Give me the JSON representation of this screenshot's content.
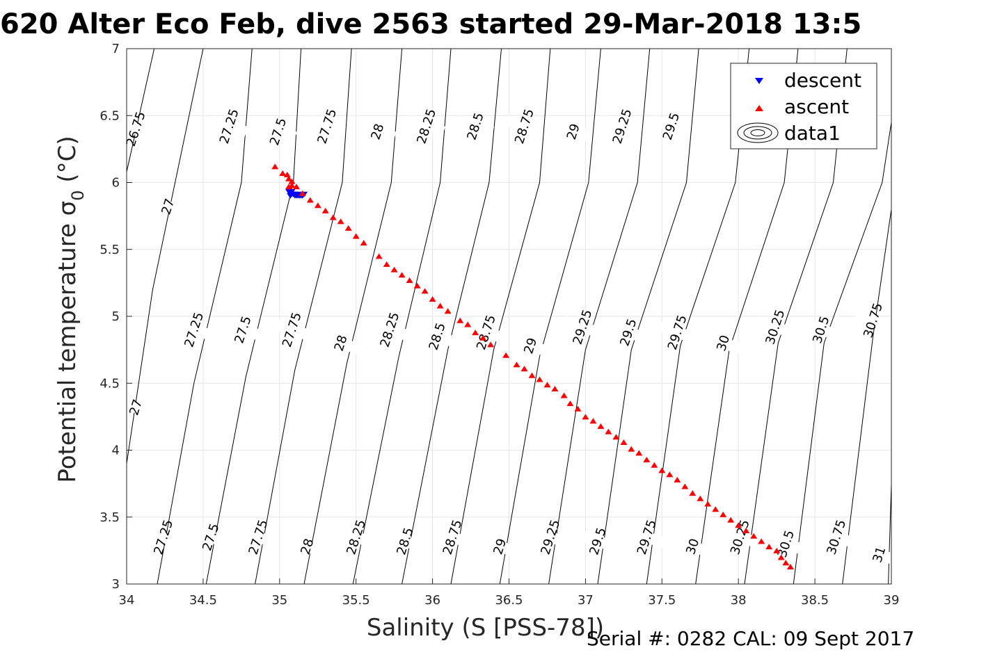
{
  "chart_data": {
    "type": "scatter",
    "title": "620 Alter Eco Feb, dive 2563 started 29-Mar-2018 13:5",
    "xlabel": "Salinity (S [PSS-78])",
    "ylabel": "Potential temperature σ",
    "ylabel_subscript": "0",
    "ylabel_suffix": " (°C)",
    "xlim": [
      34,
      39
    ],
    "ylim": [
      3,
      7
    ],
    "xticks": [
      "34",
      "34.5",
      "35",
      "35.5",
      "36",
      "36.5",
      "37",
      "37.5",
      "38",
      "38.5",
      "39"
    ],
    "yticks": [
      "3",
      "3.5",
      "4",
      "4.5",
      "5",
      "5.5",
      "6",
      "6.5",
      "7"
    ],
    "grid": true,
    "legend_position": "top-right",
    "series": [
      {
        "name": "descent",
        "marker": "triangle-down",
        "color": "#0000ff",
        "points": [
          [
            35.06,
            5.93
          ],
          [
            35.07,
            5.92
          ],
          [
            35.08,
            5.91
          ],
          [
            35.09,
            5.91
          ],
          [
            35.1,
            5.9
          ],
          [
            35.11,
            5.9
          ],
          [
            35.12,
            5.9
          ],
          [
            35.13,
            5.9
          ],
          [
            35.14,
            5.9
          ],
          [
            35.15,
            5.9
          ],
          [
            35.08,
            5.93
          ],
          [
            35.07,
            5.9
          ],
          [
            35.1,
            5.91
          ],
          [
            35.12,
            5.91
          ],
          [
            35.16,
            5.91
          ]
        ]
      },
      {
        "name": "ascent",
        "marker": "triangle-up",
        "color": "#ff0000",
        "points": [
          [
            34.97,
            6.12
          ],
          [
            35.02,
            6.07
          ],
          [
            35.05,
            6.06
          ],
          [
            35.06,
            6.03
          ],
          [
            35.08,
            6.01
          ],
          [
            35.06,
            5.97
          ],
          [
            35.08,
            5.98
          ],
          [
            35.11,
            5.97
          ],
          [
            35.15,
            5.92
          ],
          [
            35.2,
            5.87
          ],
          [
            35.25,
            5.83
          ],
          [
            35.3,
            5.79
          ],
          [
            35.35,
            5.74
          ],
          [
            35.4,
            5.71
          ],
          [
            35.45,
            5.66
          ],
          [
            35.5,
            5.6
          ],
          [
            35.55,
            5.55
          ],
          [
            35.65,
            5.45
          ],
          [
            35.7,
            5.39
          ],
          [
            35.75,
            5.35
          ],
          [
            35.8,
            5.31
          ],
          [
            35.85,
            5.27
          ],
          [
            35.9,
            5.23
          ],
          [
            35.95,
            5.19
          ],
          [
            36.0,
            5.13
          ],
          [
            36.05,
            5.08
          ],
          [
            36.1,
            5.04
          ],
          [
            36.18,
            4.97
          ],
          [
            36.23,
            4.94
          ],
          [
            36.28,
            4.88
          ],
          [
            36.33,
            4.84
          ],
          [
            36.38,
            4.79
          ],
          [
            36.48,
            4.71
          ],
          [
            36.55,
            4.64
          ],
          [
            36.6,
            4.61
          ],
          [
            36.65,
            4.56
          ],
          [
            36.7,
            4.53
          ],
          [
            36.75,
            4.49
          ],
          [
            36.8,
            4.46
          ],
          [
            36.86,
            4.41
          ],
          [
            36.9,
            4.35
          ],
          [
            36.95,
            4.31
          ],
          [
            37.0,
            4.25
          ],
          [
            37.05,
            4.22
          ],
          [
            37.1,
            4.18
          ],
          [
            37.15,
            4.14
          ],
          [
            37.2,
            4.1
          ],
          [
            37.25,
            4.06
          ],
          [
            37.3,
            4.01
          ],
          [
            37.35,
            3.98
          ],
          [
            37.4,
            3.93
          ],
          [
            37.45,
            3.89
          ],
          [
            37.5,
            3.85
          ],
          [
            37.55,
            3.82
          ],
          [
            37.6,
            3.78
          ],
          [
            37.65,
            3.73
          ],
          [
            37.7,
            3.68
          ],
          [
            37.75,
            3.64
          ],
          [
            37.8,
            3.6
          ],
          [
            37.85,
            3.56
          ],
          [
            37.9,
            3.52
          ],
          [
            37.95,
            3.48
          ],
          [
            38.0,
            3.44
          ],
          [
            38.05,
            3.4
          ],
          [
            38.1,
            3.36
          ],
          [
            38.15,
            3.32
          ],
          [
            38.2,
            3.28
          ],
          [
            38.25,
            3.25
          ],
          [
            38.28,
            3.2
          ],
          [
            38.31,
            3.16
          ],
          [
            38.34,
            3.13
          ]
        ]
      },
      {
        "name": "data1",
        "marker": "contour",
        "color": "#000000",
        "contours": [
          {
            "level": "26.75",
            "pts": [
              [
                34.0,
                6.08
              ],
              [
                34.18,
                7.0
              ]
            ],
            "label_at": [
              34.06,
              6.4
            ]
          },
          {
            "level": "27",
            "pts": [
              [
                34.17,
                5.2
              ],
              [
                34.5,
                7.0
              ]
            ],
            "label_at": [
              34.27,
              5.82
            ]
          },
          {
            "level": "27",
            "pts": [
              [
                34.0,
                3.9
              ],
              [
                34.17,
                5.2
              ]
            ],
            "label_at": [
              34.06,
              4.32
            ]
          },
          {
            "level": "27.25",
            "pts": [
              [
                34.2,
                3.0
              ],
              [
                34.44,
                4.5
              ],
              [
                34.75,
                6.0
              ],
              [
                34.82,
                7.0
              ]
            ],
            "label_at": [
              34.44,
              4.9
            ]
          },
          {
            "level": "27.5",
            "pts": [
              [
                34.52,
                3.0
              ],
              [
                34.78,
                4.55
              ],
              [
                35.09,
                6.0
              ],
              [
                35.14,
                7.0
              ]
            ],
            "label_at": [
              34.76,
              4.9
            ]
          },
          {
            "level": "27.75",
            "pts": [
              [
                34.84,
                3.0
              ],
              [
                35.1,
                4.6
              ],
              [
                35.41,
                6.0
              ],
              [
                35.47,
                7.0
              ]
            ],
            "label_at": [
              35.08,
              4.9
            ]
          },
          {
            "level": "28",
            "pts": [
              [
                35.16,
                3.0
              ],
              [
                35.44,
                4.65
              ],
              [
                35.73,
                6.0
              ],
              [
                35.8,
                7.0
              ]
            ],
            "label_at": [
              35.4,
              4.8
            ]
          },
          {
            "level": "28.25",
            "pts": [
              [
                35.48,
                3.0
              ],
              [
                35.78,
                4.7
              ],
              [
                36.05,
                6.0
              ],
              [
                36.12,
                7.0
              ]
            ],
            "label_at": [
              35.72,
              4.9
            ]
          },
          {
            "level": "28.5",
            "pts": [
              [
                35.8,
                3.0
              ],
              [
                36.1,
                4.75
              ],
              [
                36.37,
                6.0
              ],
              [
                36.45,
                7.0
              ]
            ],
            "label_at": [
              36.03,
              4.85
            ]
          },
          {
            "level": "28.75",
            "pts": [
              [
                36.12,
                3.0
              ],
              [
                36.4,
                4.75
              ],
              [
                36.7,
                6.0
              ],
              [
                36.77,
                7.0
              ]
            ],
            "label_at": [
              36.35,
              4.88
            ]
          },
          {
            "level": "29",
            "pts": [
              [
                36.44,
                3.0
              ],
              [
                36.7,
                4.7
              ],
              [
                37.02,
                6.0
              ],
              [
                37.1,
                7.0
              ]
            ],
            "label_at": [
              36.64,
              4.78
            ]
          },
          {
            "level": "29.25",
            "pts": [
              [
                36.76,
                3.0
              ],
              [
                37.0,
                4.75
              ],
              [
                37.34,
                6.0
              ],
              [
                37.42,
                7.0
              ]
            ],
            "label_at": [
              36.98,
              4.92
            ]
          },
          {
            "level": "29.5",
            "pts": [
              [
                37.08,
                3.0
              ],
              [
                37.3,
                4.75
              ],
              [
                37.66,
                6.0
              ],
              [
                37.74,
                7.0
              ]
            ],
            "label_at": [
              37.28,
              4.88
            ]
          },
          {
            "level": "29.75",
            "pts": [
              [
                37.4,
                3.0
              ],
              [
                37.62,
                4.78
              ],
              [
                37.98,
                6.0
              ],
              [
                38.07,
                7.0
              ]
            ],
            "label_at": [
              37.6,
              4.88
            ]
          },
          {
            "level": "30",
            "pts": [
              [
                37.72,
                3.0
              ],
              [
                37.94,
                4.75
              ],
              [
                38.3,
                6.0
              ],
              [
                38.39,
                7.0
              ]
            ],
            "label_at": [
              37.9,
              4.8
            ]
          },
          {
            "level": "30.25",
            "pts": [
              [
                38.04,
                3.0
              ],
              [
                38.26,
                4.8
              ],
              [
                38.62,
                6.0
              ],
              [
                38.71,
                7.0
              ]
            ],
            "label_at": [
              38.24,
              4.92
            ]
          },
          {
            "level": "30.5",
            "pts": [
              [
                38.36,
                3.0
              ],
              [
                38.56,
                4.8
              ],
              [
                38.94,
                6.0
              ],
              [
                39.0,
                6.45
              ]
            ],
            "label_at": [
              38.54,
              4.9
            ]
          },
          {
            "level": "30.75",
            "pts": [
              [
                38.68,
                3.0
              ],
              [
                38.88,
                4.85
              ],
              [
                39.0,
                5.8
              ]
            ],
            "label_at": [
              38.88,
              4.97
            ]
          },
          {
            "level": "29.75",
            "pts": [
              [
                37.94,
                7.0
              ]
            ],
            "label_at": [
              37.82,
              6.38
            ]
          },
          {
            "level": "31",
            "pts": [
              [
                38.98,
                3.0
              ],
              [
                39.0,
                3.75
              ]
            ],
            "label_at": [
              38.92,
              3.22
            ]
          }
        ],
        "top_labels": [
          {
            "level": "27.25",
            "at": [
              34.67,
              6.42
            ]
          },
          {
            "level": "27.5",
            "at": [
              34.99,
              6.38
            ]
          },
          {
            "level": "27.75",
            "at": [
              35.31,
              6.42
            ]
          },
          {
            "level": "28",
            "at": [
              35.64,
              6.38
            ]
          },
          {
            "level": "28.25",
            "at": [
              35.96,
              6.42
            ]
          },
          {
            "level": "28.5",
            "at": [
              36.28,
              6.42
            ]
          },
          {
            "level": "28.75",
            "at": [
              36.6,
              6.42
            ]
          },
          {
            "level": "29",
            "at": [
              36.92,
              6.38
            ]
          },
          {
            "level": "29.25",
            "at": [
              37.24,
              6.42
            ]
          },
          {
            "level": "29.5",
            "at": [
              37.56,
              6.42
            ]
          }
        ],
        "bottom_labels": [
          {
            "level": "27.25",
            "at": [
              34.24,
              3.35
            ]
          },
          {
            "level": "27.5",
            "at": [
              34.55,
              3.35
            ]
          },
          {
            "level": "27.75",
            "at": [
              34.86,
              3.35
            ]
          },
          {
            "level": "28",
            "at": [
              35.18,
              3.28
            ]
          },
          {
            "level": "28.25",
            "at": [
              35.5,
              3.35
            ]
          },
          {
            "level": "28.5",
            "at": [
              35.82,
              3.32
            ]
          },
          {
            "level": "28.75",
            "at": [
              36.13,
              3.35
            ]
          },
          {
            "level": "29",
            "at": [
              36.44,
              3.28
            ]
          },
          {
            "level": "29.25",
            "at": [
              36.77,
              3.35
            ]
          },
          {
            "level": "29.5",
            "at": [
              37.08,
              3.32
            ]
          },
          {
            "level": "29.75",
            "at": [
              37.4,
              3.35
            ]
          },
          {
            "level": "30",
            "at": [
              37.7,
              3.28
            ]
          },
          {
            "level": "30.25",
            "at": [
              38.01,
              3.35
            ]
          },
          {
            "level": "30.5",
            "at": [
              38.31,
              3.3
            ]
          },
          {
            "level": "30.75",
            "at": [
              38.64,
              3.35
            ]
          },
          {
            "level": "31",
            "at": [
              38.92,
              3.22
            ]
          }
        ]
      }
    ]
  },
  "legend": {
    "descent": "descent",
    "ascent": "ascent",
    "data1": "data1"
  },
  "footer": "Serial #: 0282  CAL: 09 Sept 2017"
}
